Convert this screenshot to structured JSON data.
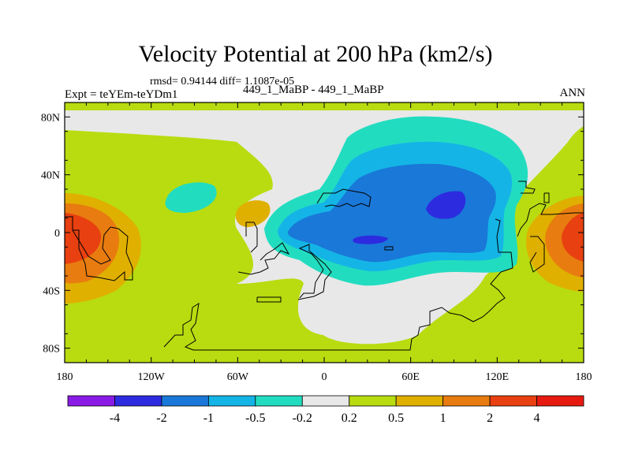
{
  "header": {
    "title": "Velocity Potential at 200 hPa (km2/s)",
    "stats": "rmsd= 0.94144 diff= 1.1087e-05",
    "experiment": "Expt = teYEm-teYDm1",
    "case_label": "449_1_MaBP - 449_1_MaBP",
    "season": "ANN"
  },
  "chart_data": {
    "type": "contour-map",
    "title": "Velocity Potential at 200 hPa (km2/s)",
    "units": "km2/s",
    "x_range": [
      -180,
      180
    ],
    "y_range": [
      -90,
      90
    ],
    "x_ticks": [
      {
        "value": -180,
        "label": "180"
      },
      {
        "value": -120,
        "label": "120W"
      },
      {
        "value": -60,
        "label": "60W"
      },
      {
        "value": 0,
        "label": "0"
      },
      {
        "value": 60,
        "label": "60E"
      },
      {
        "value": 120,
        "label": "120E"
      },
      {
        "value": 180,
        "label": "180"
      }
    ],
    "y_ticks": [
      {
        "value": 80,
        "label": "80N"
      },
      {
        "value": 40,
        "label": "40N"
      },
      {
        "value": 0,
        "label": "0"
      },
      {
        "value": -40,
        "label": "40S"
      },
      {
        "value": -80,
        "label": "80S"
      }
    ],
    "colorbar": {
      "labels": [
        "-4",
        "-2",
        "-1",
        "-0.5",
        "-0.2",
        "0.2",
        "0.5",
        "1",
        "2",
        "4"
      ],
      "colors": [
        "#8a1ae6",
        "#2d2be0",
        "#1a78d8",
        "#14b5e6",
        "#22dcc0",
        "#e8e8e8",
        "#b8dc10",
        "#e0b000",
        "#e87c10",
        "#e84010",
        "#e61a10"
      ]
    },
    "regions": [
      {
        "name": "background",
        "level": "0.2 to 0.5"
      },
      {
        "name": "neutral band",
        "level": "-0.2 to 0.2"
      },
      {
        "name": "central Pacific east",
        "level": "0.5 to 1"
      },
      {
        "name": "central Pacific",
        "level": "1 to 2"
      },
      {
        "name": "central Pacific core",
        "level": "2 to 4"
      },
      {
        "name": "western Pacific east",
        "level": "0.5 to 1"
      },
      {
        "name": "western Pacific",
        "level": "1 to 2"
      },
      {
        "name": "western Pacific core",
        "level": "2 to 4"
      },
      {
        "name": "South America small",
        "level": "0.5 to 1"
      },
      {
        "name": "North Atlantic small",
        "level": "-0.5 to -0.2"
      },
      {
        "name": "Asia-Indian Ocean",
        "level": "-0.5 to -0.2"
      },
      {
        "name": "Asia-Indian Ocean",
        "level": "-1 to -0.5"
      },
      {
        "name": "Asia-Indian Ocean",
        "level": "-2 to -1"
      },
      {
        "name": "Tibet core",
        "level": "-4 to -2"
      },
      {
        "name": "Africa core",
        "level": "-4 to -2"
      }
    ]
  }
}
